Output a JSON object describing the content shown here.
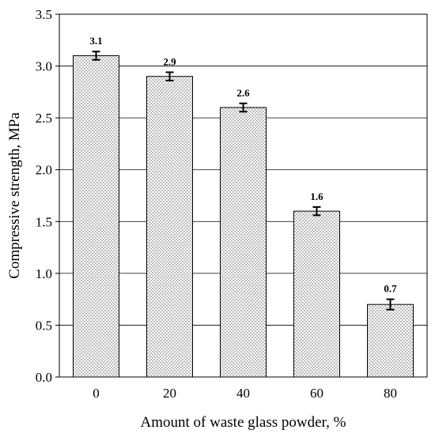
{
  "chart_data": {
    "type": "bar",
    "title": "",
    "xlabel": "Amount of waste glass powder, %",
    "ylabel": "Compressive strength, MPa",
    "categories": [
      "0",
      "20",
      "40",
      "60",
      "80"
    ],
    "values": [
      3.1,
      2.9,
      2.6,
      1.6,
      0.7
    ],
    "errors": [
      0.04,
      0.04,
      0.04,
      0.04,
      0.05
    ],
    "data_labels": [
      "3.1",
      "2.9",
      "2.6",
      "1.6",
      "0.7"
    ],
    "ylim": [
      0,
      3.5
    ],
    "yticks": [
      "0.0",
      "0.5",
      "1.0",
      "1.5",
      "2.0",
      "2.5",
      "3.0",
      "3.5"
    ],
    "grid": "horizontal",
    "legend": "none",
    "bar_fill": "dotted gray pattern",
    "colors": {
      "bar_edge": "#000000",
      "grid": "#000000",
      "dots": "#555555"
    }
  }
}
